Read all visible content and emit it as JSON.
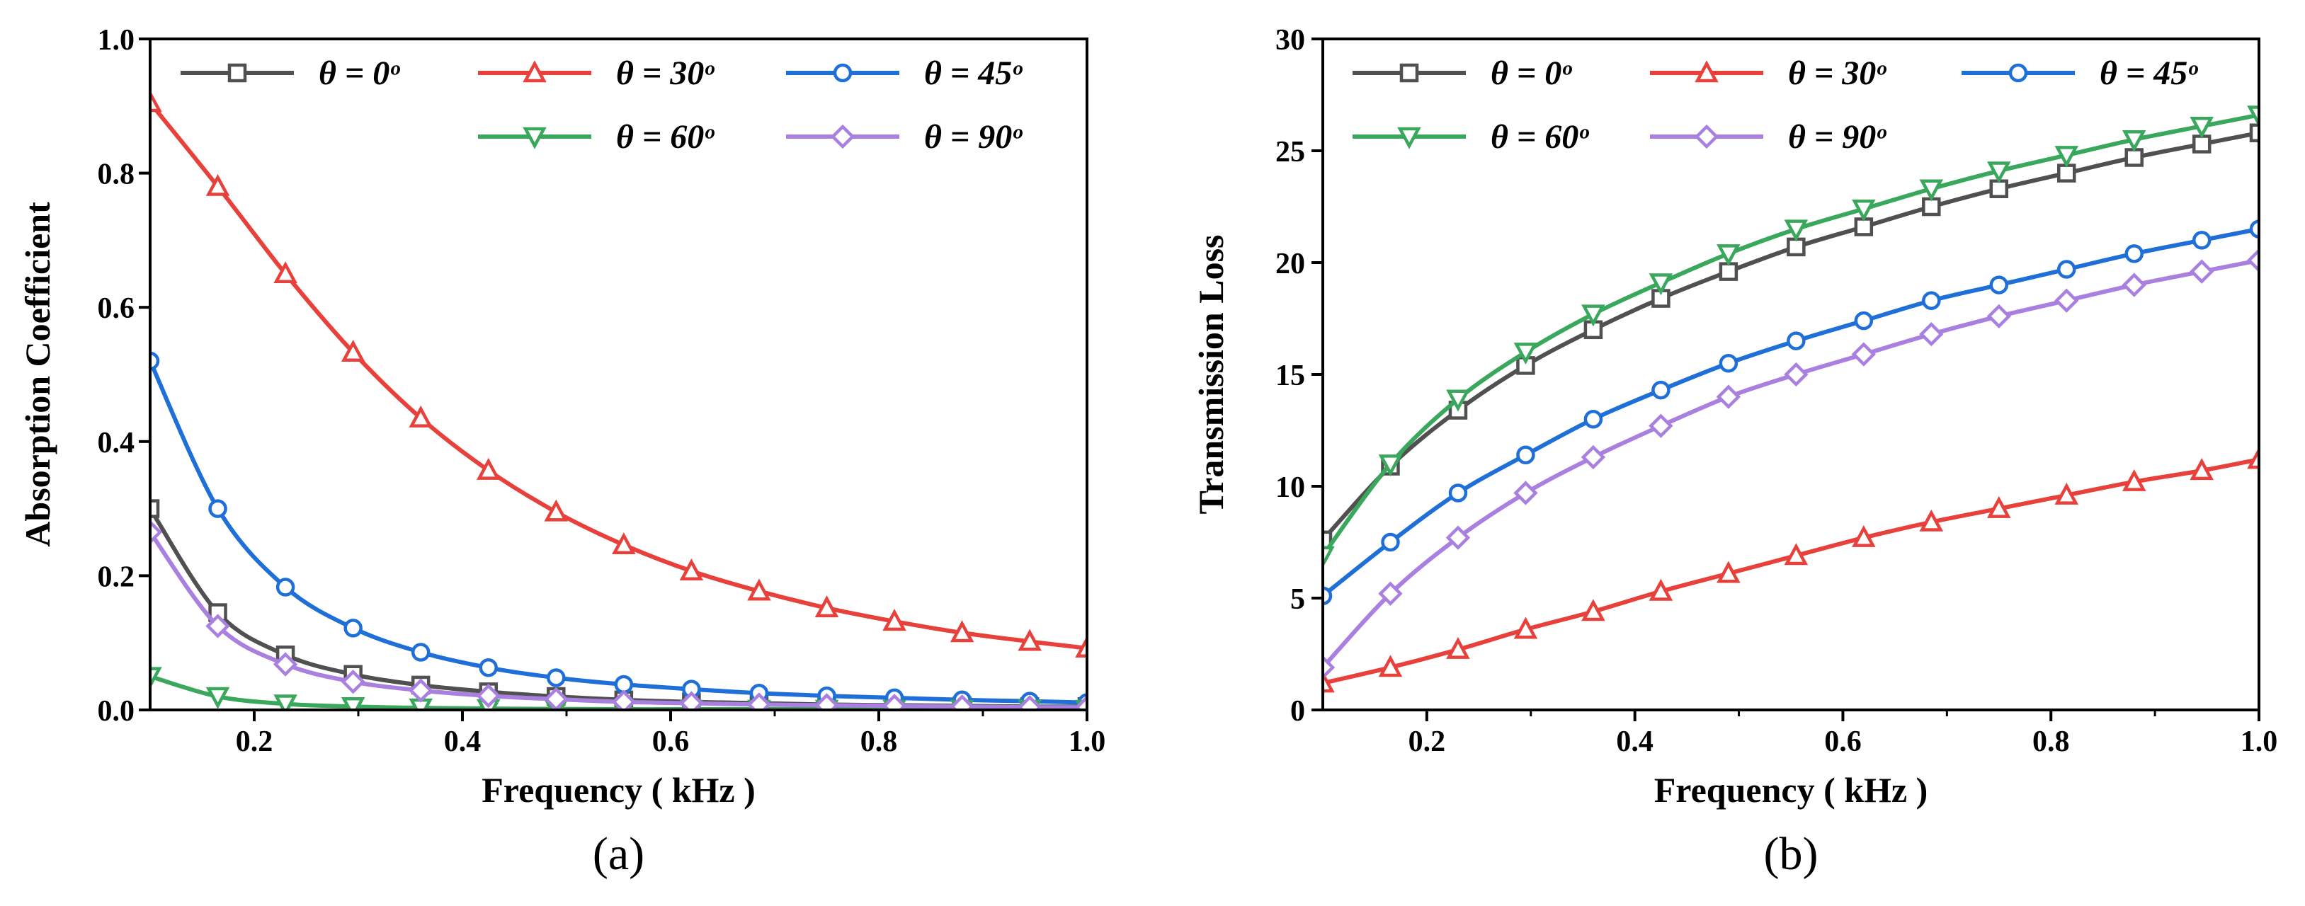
{
  "chart_data": [
    {
      "type": "line",
      "panel_label": "(a)",
      "xlabel": "Frequency ( kHz )",
      "ylabel": "Absorption Coefficient",
      "xlim": [
        0.1,
        1.0
      ],
      "ylim": [
        0.0,
        1.0
      ],
      "x_ticks": [
        0.2,
        0.4,
        0.6,
        0.8,
        1.0
      ],
      "x_tick_labels": [
        "0.2",
        "0.4",
        "0.6",
        "0.8",
        "1.0"
      ],
      "y_ticks": [
        0.0,
        0.2,
        0.4,
        0.6,
        0.8,
        1.0
      ],
      "y_tick_labels": [
        "0.0",
        "0.2",
        "0.4",
        "0.6",
        "0.8",
        "1.0"
      ],
      "legend_position": "top",
      "x": [
        0.1,
        0.165,
        0.23,
        0.295,
        0.36,
        0.425,
        0.49,
        0.555,
        0.62,
        0.685,
        0.75,
        0.815,
        0.88,
        0.945,
        1.0
      ],
      "series": [
        {
          "name": "θ = 0ᵒ",
          "color": "#505050",
          "marker": "square",
          "values": [
            0.3,
            0.145,
            0.082,
            0.053,
            0.037,
            0.027,
            0.02,
            0.015,
            0.012,
            0.01,
            0.008,
            0.007,
            0.006,
            0.005,
            0.005
          ]
        },
        {
          "name": "θ = 30ᵒ",
          "color": "#e8413c",
          "marker": "triangle-up",
          "values": [
            0.905,
            0.78,
            0.65,
            0.533,
            0.435,
            0.357,
            0.295,
            0.246,
            0.207,
            0.177,
            0.152,
            0.132,
            0.115,
            0.102,
            0.092
          ]
        },
        {
          "name": "θ = 45ᵒ",
          "color": "#1f6fd8",
          "marker": "circle",
          "values": [
            0.52,
            0.3,
            0.183,
            0.122,
            0.086,
            0.063,
            0.048,
            0.038,
            0.031,
            0.025,
            0.021,
            0.018,
            0.015,
            0.013,
            0.011
          ]
        },
        {
          "name": "θ = 60ᵒ",
          "color": "#3aa85c",
          "marker": "triangle-down",
          "values": [
            0.05,
            0.02,
            0.009,
            0.005,
            0.003,
            0.002,
            0.0015,
            0.001,
            0.001,
            0.001,
            0.001,
            0.001,
            0.001,
            0.001,
            0.001
          ]
        },
        {
          "name": "θ = 90ᵒ",
          "color": "#a97fe0",
          "marker": "diamond",
          "values": [
            0.265,
            0.125,
            0.068,
            0.042,
            0.029,
            0.021,
            0.016,
            0.012,
            0.01,
            0.008,
            0.007,
            0.006,
            0.005,
            0.004,
            0.004
          ]
        }
      ]
    },
    {
      "type": "line",
      "panel_label": "(b)",
      "xlabel": "Frequency ( kHz )",
      "ylabel": "Transmission Loss",
      "xlim": [
        0.1,
        1.0
      ],
      "ylim": [
        0,
        30
      ],
      "x_ticks": [
        0.2,
        0.4,
        0.6,
        0.8,
        1.0
      ],
      "x_tick_labels": [
        "0.2",
        "0.4",
        "0.6",
        "0.8",
        "1.0"
      ],
      "y_ticks": [
        0,
        5,
        10,
        15,
        20,
        25,
        30
      ],
      "y_tick_labels": [
        "0",
        "5",
        "10",
        "15",
        "20",
        "25",
        "30"
      ],
      "legend_position": "top",
      "x": [
        0.1,
        0.165,
        0.23,
        0.295,
        0.36,
        0.425,
        0.49,
        0.555,
        0.62,
        0.685,
        0.75,
        0.815,
        0.88,
        0.945,
        1.0
      ],
      "series": [
        {
          "name": "θ = 0ᵒ",
          "color": "#505050",
          "marker": "square",
          "values": [
            7.6,
            10.9,
            13.4,
            15.4,
            17.0,
            18.4,
            19.6,
            20.7,
            21.6,
            22.5,
            23.3,
            24.0,
            24.7,
            25.3,
            25.8
          ]
        },
        {
          "name": "θ = 30ᵒ",
          "color": "#e8413c",
          "marker": "triangle-up",
          "values": [
            1.2,
            1.9,
            2.7,
            3.6,
            4.4,
            5.3,
            6.1,
            6.9,
            7.7,
            8.4,
            9.0,
            9.6,
            10.2,
            10.7,
            11.2
          ]
        },
        {
          "name": "θ = 45ᵒ",
          "color": "#1f6fd8",
          "marker": "circle",
          "values": [
            5.1,
            7.5,
            9.7,
            11.4,
            13.0,
            14.3,
            15.5,
            16.5,
            17.4,
            18.3,
            19.0,
            19.7,
            20.4,
            21.0,
            21.5
          ]
        },
        {
          "name": "θ = 60ᵒ",
          "color": "#3aa85c",
          "marker": "triangle-down",
          "values": [
            6.9,
            11.0,
            13.9,
            16.0,
            17.7,
            19.1,
            20.4,
            21.5,
            22.4,
            23.3,
            24.1,
            24.8,
            25.5,
            26.1,
            26.6
          ]
        },
        {
          "name": "θ = 90ᵒ",
          "color": "#a97fe0",
          "marker": "diamond",
          "values": [
            1.9,
            5.2,
            7.7,
            9.7,
            11.3,
            12.7,
            14.0,
            15.0,
            15.9,
            16.8,
            17.6,
            18.3,
            19.0,
            19.6,
            20.1
          ]
        }
      ]
    }
  ]
}
